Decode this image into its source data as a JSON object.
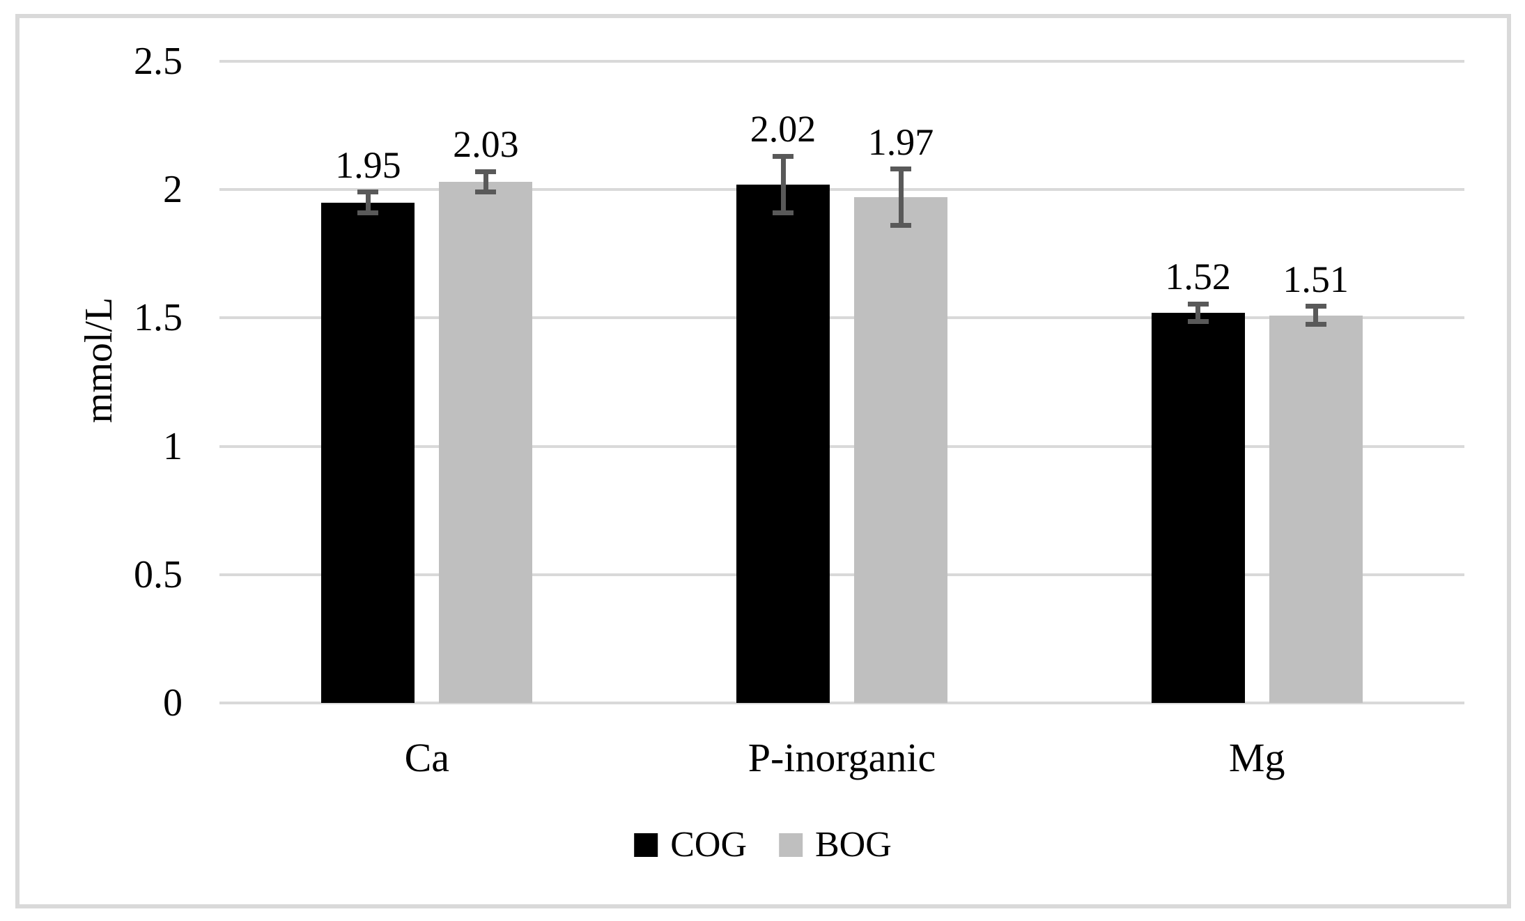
{
  "figure": {
    "description": "Grouped column chart with standard-deviation error bars comparing COG and BOG groups"
  },
  "chart_data": {
    "type": "bar",
    "title": "",
    "xlabel": "",
    "ylabel": "mmol/L",
    "ylim": [
      0,
      2.5
    ],
    "yticks": [
      0,
      0.5,
      1,
      1.5,
      2,
      2.5
    ],
    "ytick_labels": [
      "0",
      "0.5",
      "1",
      "1.5",
      "2",
      "2.5"
    ],
    "grid": "horizontal",
    "legend_position": "bottom-center",
    "categories": [
      "Ca",
      "P-inorganic",
      "Mg"
    ],
    "series": [
      {
        "name": "COG",
        "color": "#000000",
        "values": [
          1.95,
          2.02,
          1.52
        ],
        "value_labels": [
          "1.95",
          "2.02",
          "1.52"
        ],
        "errors": [
          0.04,
          0.11,
          0.035
        ]
      },
      {
        "name": "BOG",
        "color": "#bfbfbf",
        "values": [
          2.03,
          1.97,
          1.51
        ],
        "value_labels": [
          "2.03",
          "1.97",
          "1.51"
        ],
        "errors": [
          0.04,
          0.11,
          0.035
        ]
      }
    ],
    "colors": {
      "error_bar": "#595959",
      "gridline": "#d9d9d9",
      "axis_line": "#d9d9d9",
      "frame_border": "#d9d9d9",
      "text": "#000000"
    }
  }
}
